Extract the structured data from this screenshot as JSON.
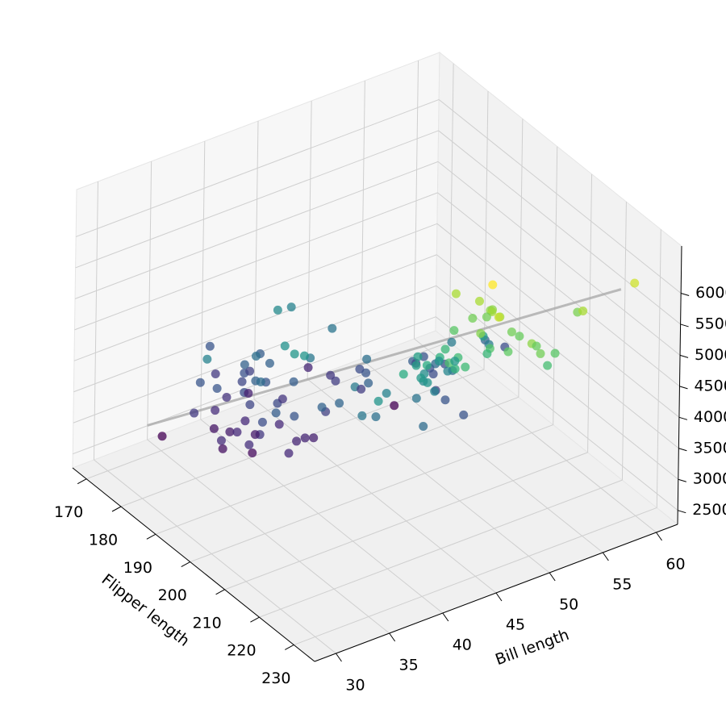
{
  "chart_data": {
    "type": "scatter3d",
    "xlabel": "Flipper length",
    "ylabel": "Bill length",
    "xlim": [
      166,
      236
    ],
    "ylim": [
      28,
      62
    ],
    "zlim": [
      2275,
      6760
    ],
    "xticks": [
      170,
      180,
      190,
      200,
      210,
      220,
      230
    ],
    "yticks": [
      30,
      35,
      40,
      45,
      50,
      55,
      60
    ],
    "zticks": [
      2500,
      3000,
      3500,
      4000,
      4500,
      5000,
      5500,
      6000
    ],
    "grid": true,
    "colormap": "viridis",
    "x": [
      181,
      186,
      195,
      193,
      190,
      181,
      195,
      182,
      191,
      198,
      185,
      195,
      197,
      184,
      194,
      174,
      180,
      189,
      185,
      180,
      187,
      183,
      187,
      172,
      180,
      178,
      178,
      188,
      184,
      195,
      196,
      190,
      180,
      181,
      184,
      182,
      195,
      186,
      196,
      185,
      190,
      182,
      179,
      190,
      191,
      186,
      188,
      190,
      200,
      187,
      201,
      176,
      210,
      193,
      203,
      192,
      196,
      193,
      188,
      197,
      198,
      178,
      197,
      195,
      198,
      193,
      194,
      190,
      201,
      185,
      201,
      190,
      198,
      212,
      199,
      200,
      205,
      205,
      207,
      210,
      211,
      230,
      210,
      218,
      215,
      210,
      211,
      219,
      209,
      215,
      214,
      216,
      214,
      213,
      210,
      217,
      210,
      221,
      209,
      222,
      218,
      215,
      213,
      215,
      215,
      220,
      222,
      209,
      230,
      220,
      222,
      213,
      228,
      224,
      230,
      225,
      220,
      231,
      230,
      229,
      216,
      222,
      225,
      223,
      221,
      226,
      217,
      212
    ],
    "y": [
      39.1,
      39.5,
      40.3,
      36.7,
      39.3,
      38.9,
      39.2,
      34.1,
      42,
      37.8,
      37.8,
      41.1,
      38.6,
      34.6,
      36.6,
      38.7,
      42.5,
      34.4,
      46,
      37.8,
      37.7,
      35.9,
      38.2,
      38.8,
      35.3,
      40.6,
      40.5,
      37.9,
      40.5,
      39.5,
      37.2,
      39.5,
      40.9,
      36.4,
      39.2,
      38.8,
      42.2,
      37.6,
      39.8,
      36.5,
      40.8,
      36,
      44.1,
      37,
      39.6,
      41.1,
      36.2,
      37.7,
      40.2,
      35.2,
      41.5,
      33.1,
      40.7,
      35.7,
      42.3,
      46.5,
      50,
      51.3,
      45.4,
      52.7,
      45.2,
      46.1,
      51.3,
      46,
      51.3,
      46.6,
      51.7,
      47,
      52,
      45.9,
      50.5,
      50.3,
      58,
      49.6,
      55.8,
      50.9,
      54.2,
      50.8,
      49.5,
      52,
      46.1,
      50,
      48.7,
      50,
      47.6,
      46.5,
      45.4,
      46.7,
      43.3,
      46.8,
      40.9,
      49,
      45.5,
      48.4,
      45.8,
      49.3,
      42,
      49.2,
      46.2,
      48.7,
      50.2,
      45.1,
      46.5,
      46.3,
      42.9,
      46.1,
      47.8,
      48.2,
      59.6,
      49.1,
      49.6,
      45.2,
      51.1,
      50.8,
      52.2,
      55.9,
      49.5,
      50.5,
      51.5,
      55.1,
      44.5,
      46.4,
      48.5,
      50.4,
      45.2,
      49.1,
      50,
      48.7
    ],
    "z": [
      3750,
      3800,
      3250,
      3450,
      3650,
      3625,
      4675,
      3475,
      4250,
      3300,
      3700,
      3200,
      3800,
      4400,
      3700,
      3450,
      4500,
      3325,
      4200,
      3400,
      3600,
      3800,
      3950,
      3800,
      3800,
      3550,
      3200,
      3150,
      3950,
      3250,
      3900,
      3300,
      3900,
      3325,
      4150,
      3950,
      3550,
      3300,
      4650,
      3150,
      3900,
      3100,
      4400,
      3000,
      4600,
      3425,
      3300,
      4100,
      3975,
      3050,
      4000,
      2900,
      4250,
      3350,
      4300,
      3500,
      3900,
      3650,
      3525,
      3725,
      3950,
      3250,
      3750,
      4150,
      3700,
      3800,
      3775,
      3700,
      4300,
      3450,
      4050,
      2900,
      3700,
      3775,
      4000,
      3550,
      4300,
      4100,
      3800,
      4800,
      4500,
      5700,
      4450,
      5700,
      5400,
      4550,
      4800,
      5200,
      4400,
      5150,
      4650,
      5550,
      4650,
      5850,
      4200,
      5850,
      4150,
      6300,
      4800,
      5350,
      5700,
      5000,
      4400,
      5050,
      5000,
      5100,
      5650,
      4600,
      6050,
      5150,
      5800,
      4700,
      5500,
      5500,
      5400,
      5600,
      5800,
      5550,
      5250,
      5850,
      4100,
      5200,
      6000,
      5550,
      5300,
      5450,
      5550,
      4700
    ],
    "fit_line": {
      "x": [
        172,
        231
      ],
      "y": [
        33,
        58
      ],
      "z": [
        2900,
        6100
      ],
      "color": "#aaaaaa"
    }
  }
}
